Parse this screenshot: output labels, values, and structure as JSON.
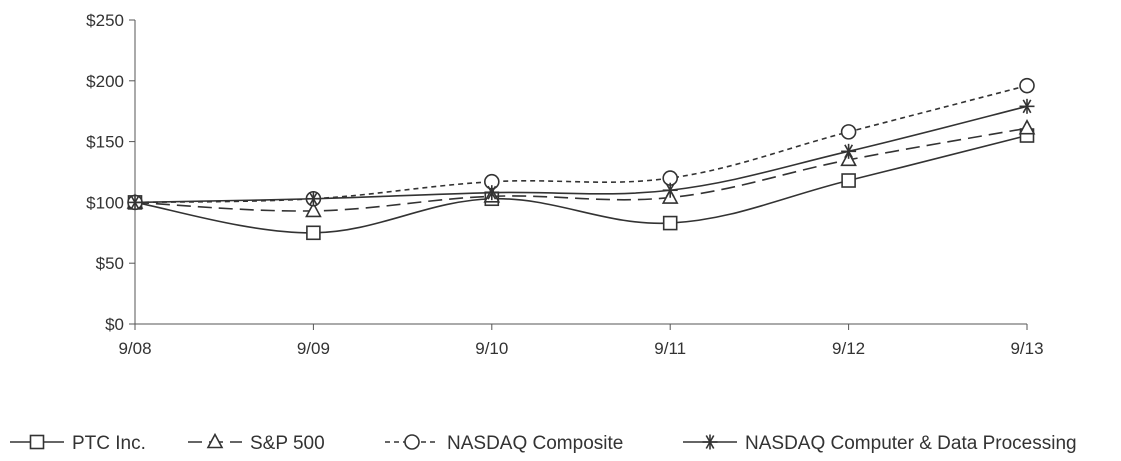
{
  "chart_data": {
    "type": "line",
    "title": "",
    "xlabel": "",
    "ylabel": "",
    "categories": [
      "9/08",
      "9/09",
      "9/10",
      "9/11",
      "9/12",
      "9/13"
    ],
    "ylim": [
      0,
      250
    ],
    "yticks": [
      0,
      50,
      100,
      150,
      200,
      250
    ],
    "ytick_labels": [
      "$0",
      "$50",
      "$100",
      "$150",
      "$200",
      "$250"
    ],
    "grid": false,
    "legend_position": "bottom",
    "series": [
      {
        "name": "PTC Inc.",
        "marker": "square",
        "dash": "solid",
        "values": [
          100,
          75,
          103,
          83,
          118,
          155
        ]
      },
      {
        "name": "S&P 500",
        "marker": "triangle",
        "dash": "long-dash",
        "values": [
          100,
          93,
          105,
          104,
          135,
          161
        ]
      },
      {
        "name": "NASDAQ Composite",
        "marker": "circle",
        "dash": "short-dash",
        "values": [
          100,
          103,
          117,
          120,
          158,
          196
        ]
      },
      {
        "name": "NASDAQ Computer & Data Processing",
        "marker": "star",
        "dash": "solid",
        "values": [
          100,
          103,
          108,
          110,
          142,
          179
        ]
      }
    ],
    "colors": {
      "line": "#333333",
      "axis": "#555555",
      "text": "#333333"
    }
  }
}
